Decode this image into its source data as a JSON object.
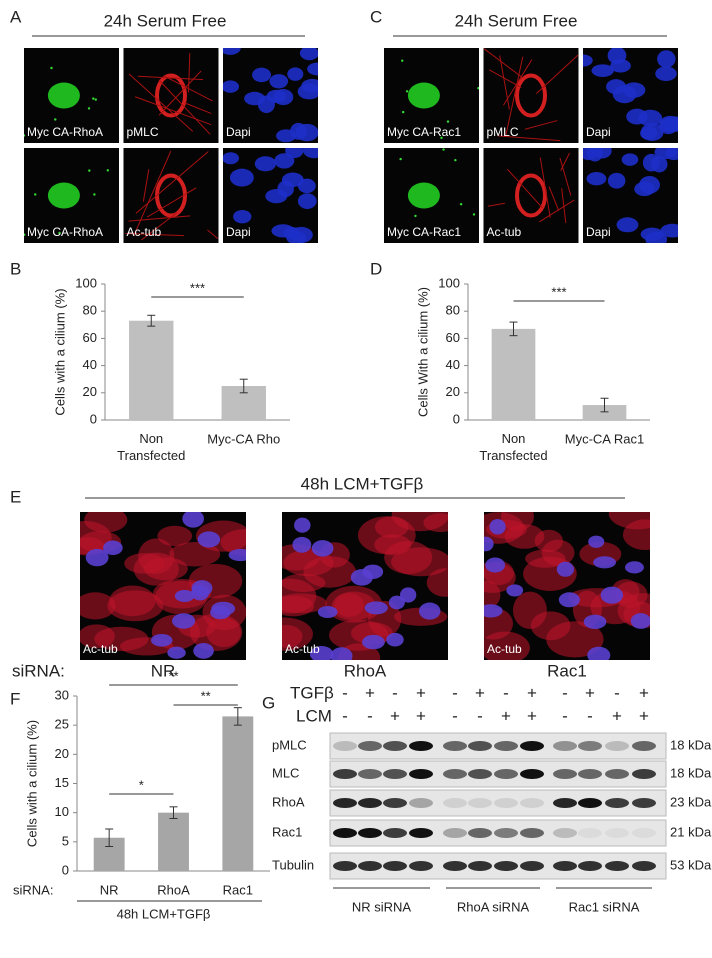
{
  "panel_a": {
    "letter": "A",
    "title": "24h Serum Free",
    "images": [
      [
        "Myc CA-RhoA",
        "pMLC",
        "Dapi"
      ],
      [
        "Myc CA-RhoA",
        "Ac-tub",
        "Dapi"
      ]
    ]
  },
  "panel_c": {
    "letter": "C",
    "title": "24h Serum Free",
    "images": [
      [
        "Myc CA-Rac1",
        "pMLC",
        "Dapi"
      ],
      [
        "Myc CA-Rac1",
        "Ac-tub",
        "Dapi"
      ]
    ]
  },
  "panel_e": {
    "letter": "E",
    "title": "48h LCM+TGFβ",
    "row_label": "siRNA:",
    "images": [
      {
        "label": "Ac-tub",
        "condition": "NR"
      },
      {
        "label": "Ac-tub",
        "condition": "RhoA"
      },
      {
        "label": "Ac-tub",
        "condition": "Rac1"
      }
    ]
  },
  "chart_data": [
    {
      "type": "bar",
      "panel_label": "B",
      "ylabel": "Cells with a cilium (%)",
      "categories": [
        "Non\nTransfected",
        "Myc-CA Rho"
      ],
      "values": [
        73,
        25
      ],
      "errors": [
        4,
        5
      ],
      "color": "#bfbfbf",
      "ylim": [
        0,
        100
      ],
      "yticks": [
        0,
        20,
        40,
        60,
        80,
        100
      ],
      "significance": [
        {
          "between": [
            0,
            1
          ],
          "label": "***"
        }
      ]
    },
    {
      "type": "bar",
      "panel_label": "D",
      "ylabel": "Cells With a cilium (%)",
      "categories": [
        "Non\nTransfected",
        "Myc-CA Rac1"
      ],
      "values": [
        67,
        11
      ],
      "errors": [
        5,
        5
      ],
      "color": "#bfbfbf",
      "ylim": [
        0,
        100
      ],
      "yticks": [
        0,
        20,
        40,
        60,
        80,
        100
      ],
      "significance": [
        {
          "between": [
            0,
            1
          ],
          "label": "***"
        }
      ]
    },
    {
      "type": "bar",
      "panel_label": "F",
      "ylabel": "Cells with a cilium (%)",
      "xlabel": "siRNA:",
      "caption": "48h LCM+TGFβ",
      "categories": [
        "NR",
        "RhoA",
        "Rac1"
      ],
      "values": [
        5.7,
        10,
        26.5
      ],
      "errors": [
        1.5,
        1,
        1.5
      ],
      "color": "#a6a6a6",
      "ylim": [
        0,
        30
      ],
      "yticks": [
        0,
        5,
        10,
        15,
        20,
        25,
        30
      ],
      "significance": [
        {
          "between": [
            0,
            1
          ],
          "label": "*"
        },
        {
          "between": [
            0,
            2
          ],
          "label": "**"
        },
        {
          "between": [
            1,
            2
          ],
          "label": "**"
        }
      ]
    }
  ],
  "blot": {
    "letter": "G",
    "treatments": [
      {
        "name": "TGFβ",
        "signs": [
          "-",
          "+",
          "-",
          "+",
          "-",
          "+",
          "-",
          "+",
          "-",
          "+",
          "-",
          "+"
        ]
      },
      {
        "name": "LCM",
        "signs": [
          "-",
          "-",
          "+",
          "+",
          "-",
          "-",
          "+",
          "+",
          "-",
          "-",
          "+",
          "+"
        ]
      }
    ],
    "rows": [
      {
        "name": "pMLC",
        "size": "18 kDa"
      },
      {
        "name": "MLC",
        "size": "18 kDa"
      },
      {
        "name": "RhoA",
        "size": "23 kDa"
      },
      {
        "name": "Rac1",
        "size": "21 kDa"
      },
      {
        "name": "Tubulin",
        "size": "53 kDa"
      }
    ],
    "groups": [
      "NR siRNA",
      "RhoA siRNA",
      "Rac1 siRNA"
    ]
  }
}
